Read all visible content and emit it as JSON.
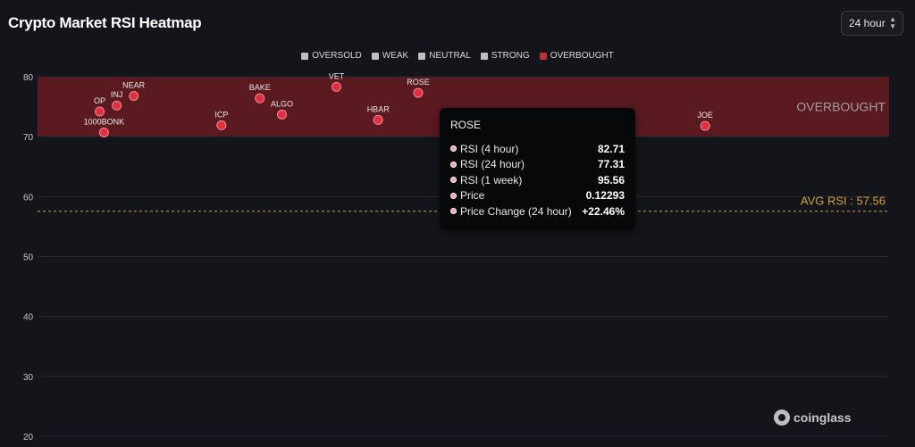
{
  "header": {
    "title": "Crypto Market RSI Heatmap",
    "timeframe": "24 hour"
  },
  "legend": [
    {
      "label": "OVERSOLD",
      "color": "#bfbfbf"
    },
    {
      "label": "WEAK",
      "color": "#bfbfbf"
    },
    {
      "label": "NEUTRAL",
      "color": "#bfbfbf"
    },
    {
      "label": "STRONG",
      "color": "#bfbfbf"
    },
    {
      "label": "OVERBOUGHT",
      "color": "#c0303a"
    }
  ],
  "chart_data": {
    "type": "scatter",
    "title": "Crypto Market RSI Heatmap",
    "xlabel": "",
    "ylabel": "",
    "ylim": [
      20,
      80
    ],
    "xlim": [
      0,
      100
    ],
    "yticks": [
      20,
      30,
      40,
      50,
      60,
      70,
      80
    ],
    "grid": true,
    "zones": [
      {
        "label": "OVERBOUGHT",
        "from": 70,
        "to": 80,
        "color": "#5a1a20"
      }
    ],
    "avg_line": {
      "label": "AVG RSI : 57.56",
      "value": 57.56,
      "color": "#d4a046"
    },
    "points": [
      {
        "name": "OP",
        "x": 7.3,
        "y": 74.2
      },
      {
        "name": "INJ",
        "x": 9.3,
        "y": 75.2
      },
      {
        "name": "NEAR",
        "x": 11.3,
        "y": 76.8
      },
      {
        "name": "1000BONK",
        "x": 7.8,
        "y": 70.7
      },
      {
        "name": "ICP",
        "x": 21.6,
        "y": 71.9
      },
      {
        "name": "BAKE",
        "x": 26.1,
        "y": 76.4
      },
      {
        "name": "ALGO",
        "x": 28.7,
        "y": 73.7
      },
      {
        "name": "VET",
        "x": 35.1,
        "y": 78.3
      },
      {
        "name": "HBAR",
        "x": 40.0,
        "y": 72.8
      },
      {
        "name": "ROSE",
        "x": 44.7,
        "y": 77.31
      },
      {
        "name": "JOE",
        "x": 78.4,
        "y": 71.8
      }
    ],
    "series_color": "#e0303f"
  },
  "tooltip": {
    "title": "ROSE",
    "rows": [
      {
        "label": "RSI (4 hour)",
        "value": "82.71"
      },
      {
        "label": "RSI (24 hour)",
        "value": "77.31"
      },
      {
        "label": "RSI (1 week)",
        "value": "95.56"
      },
      {
        "label": "Price",
        "value": "0.12293"
      },
      {
        "label": "Price Change (24 hour)",
        "value": "+22.46%"
      }
    ]
  },
  "brand": {
    "name": "coinglass"
  }
}
